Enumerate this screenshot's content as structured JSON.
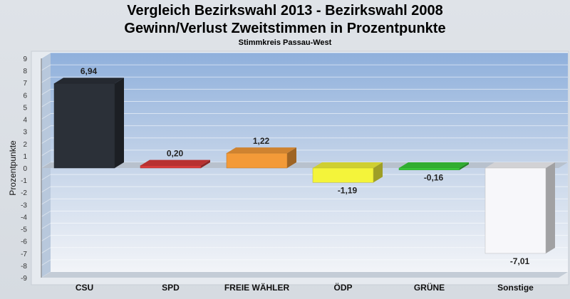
{
  "chart_data": {
    "type": "bar",
    "title": "Vergleich Bezirkswahl 2013 - Bezirkswahl 2008",
    "subtitle": "Gewinn/Verlust Zweitstimmen in Prozentpunkte",
    "annotation": "Stimmkreis Passau-West",
    "xlabel": "",
    "ylabel": "Prozentpunkte",
    "ylim": [
      -9,
      9
    ],
    "yticks": [
      9,
      8,
      7,
      6,
      5,
      4,
      3,
      2,
      1,
      0,
      -1,
      -2,
      -3,
      -4,
      -5,
      -6,
      -7,
      -8,
      -9
    ],
    "grid": true,
    "categories": [
      "CSU",
      "SPD",
      "FREIE WÄHLER",
      "ÖDP",
      "GRÜNE",
      "Sonstige"
    ],
    "values": [
      6.94,
      0.2,
      1.22,
      -1.19,
      -0.16,
      -7.01
    ],
    "value_labels": [
      "6,94",
      "0,20",
      "1,22",
      "-1,19",
      "-0,16",
      "-7,01"
    ],
    "colors": [
      "#2b3038",
      "#d83a3a",
      "#f39a38",
      "#f4f43a",
      "#3acc3a",
      "#f7f7fa"
    ]
  }
}
